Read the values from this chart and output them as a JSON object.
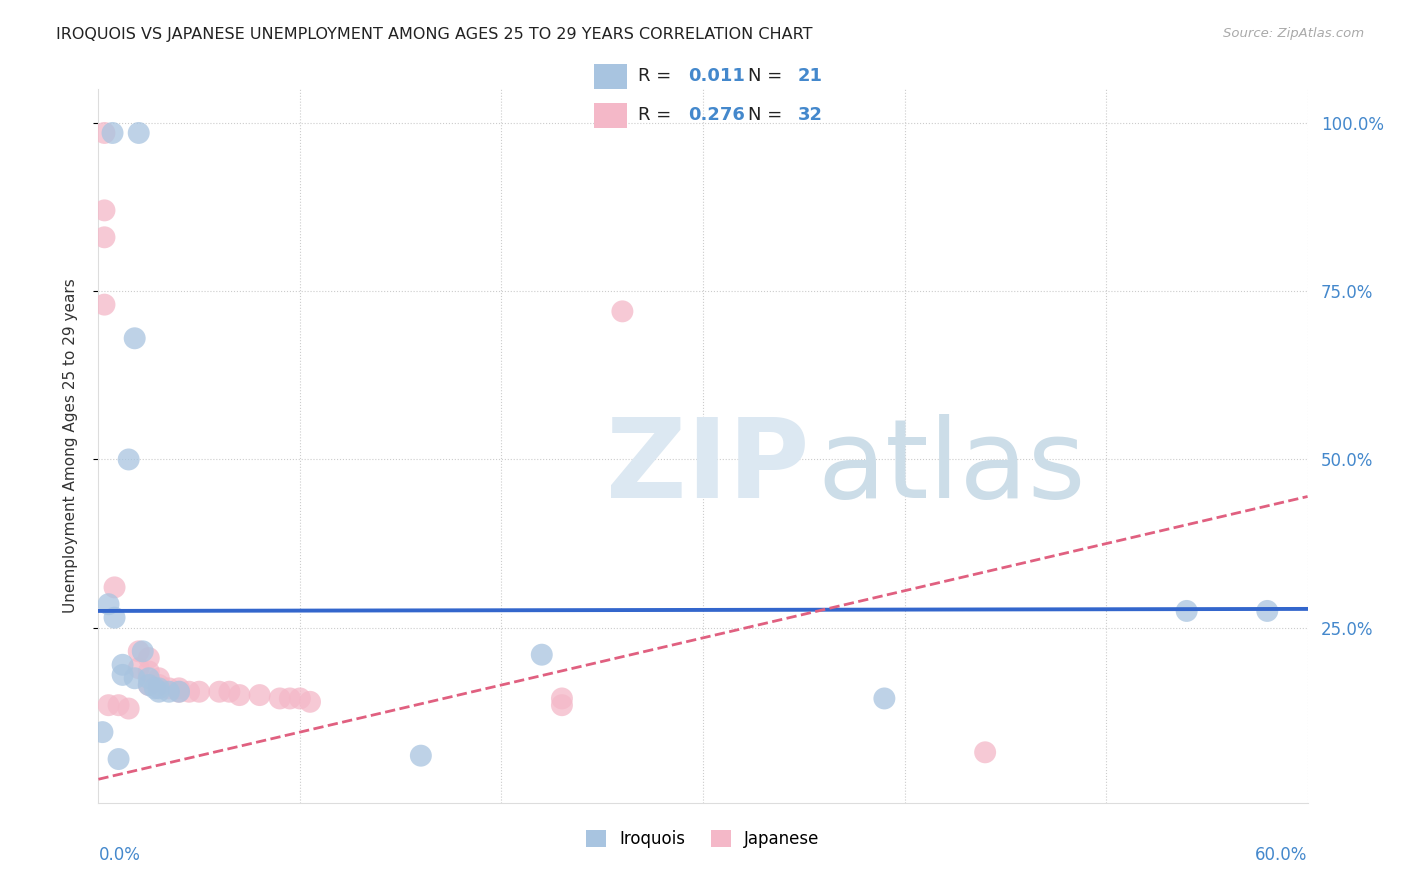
{
  "title": "IROQUOIS VS JAPANESE UNEMPLOYMENT AMONG AGES 25 TO 29 YEARS CORRELATION CHART",
  "source": "Source: ZipAtlas.com",
  "ylabel": "Unemployment Among Ages 25 to 29 years",
  "xlim": [
    0.0,
    0.6
  ],
  "ylim": [
    -0.01,
    1.05
  ],
  "iroquois_color": "#a8c4e0",
  "japanese_color": "#f4b8c8",
  "iroquois_line_color": "#3366cc",
  "japanese_line_color": "#e06080",
  "iroquois_scatter": [
    [
      0.007,
      0.985
    ],
    [
      0.02,
      0.985
    ],
    [
      0.018,
      0.68
    ],
    [
      0.015,
      0.5
    ],
    [
      0.005,
      0.285
    ],
    [
      0.008,
      0.265
    ],
    [
      0.022,
      0.215
    ],
    [
      0.012,
      0.195
    ],
    [
      0.012,
      0.18
    ],
    [
      0.018,
      0.175
    ],
    [
      0.025,
      0.175
    ],
    [
      0.025,
      0.165
    ],
    [
      0.028,
      0.16
    ],
    [
      0.03,
      0.16
    ],
    [
      0.03,
      0.155
    ],
    [
      0.035,
      0.155
    ],
    [
      0.04,
      0.155
    ],
    [
      0.002,
      0.095
    ],
    [
      0.01,
      0.055
    ],
    [
      0.16,
      0.06
    ],
    [
      0.22,
      0.21
    ],
    [
      0.39,
      0.145
    ],
    [
      0.54,
      0.275
    ],
    [
      0.58,
      0.275
    ]
  ],
  "japanese_scatter": [
    [
      0.003,
      0.985
    ],
    [
      0.003,
      0.87
    ],
    [
      0.003,
      0.83
    ],
    [
      0.003,
      0.73
    ],
    [
      0.26,
      0.72
    ],
    [
      0.008,
      0.31
    ],
    [
      0.02,
      0.215
    ],
    [
      0.025,
      0.205
    ],
    [
      0.02,
      0.19
    ],
    [
      0.025,
      0.185
    ],
    [
      0.03,
      0.175
    ],
    [
      0.025,
      0.165
    ],
    [
      0.03,
      0.165
    ],
    [
      0.035,
      0.16
    ],
    [
      0.04,
      0.16
    ],
    [
      0.04,
      0.155
    ],
    [
      0.045,
      0.155
    ],
    [
      0.05,
      0.155
    ],
    [
      0.06,
      0.155
    ],
    [
      0.065,
      0.155
    ],
    [
      0.07,
      0.15
    ],
    [
      0.08,
      0.15
    ],
    [
      0.09,
      0.145
    ],
    [
      0.095,
      0.145
    ],
    [
      0.1,
      0.145
    ],
    [
      0.105,
      0.14
    ],
    [
      0.005,
      0.135
    ],
    [
      0.01,
      0.135
    ],
    [
      0.015,
      0.13
    ],
    [
      0.23,
      0.145
    ],
    [
      0.23,
      0.135
    ],
    [
      0.44,
      0.065
    ]
  ],
  "iroquois_slope": 0.005,
  "iroquois_intercept": 0.275,
  "japanese_slope": 0.7,
  "japanese_intercept": 0.025,
  "background_color": "#ffffff",
  "grid_color": "#cccccc",
  "title_color": "#222222",
  "axis_label_color": "#4488cc",
  "title_fontsize": 11.5,
  "legend_fontsize": 12,
  "source_text": "Source: ZipAtlas.com"
}
